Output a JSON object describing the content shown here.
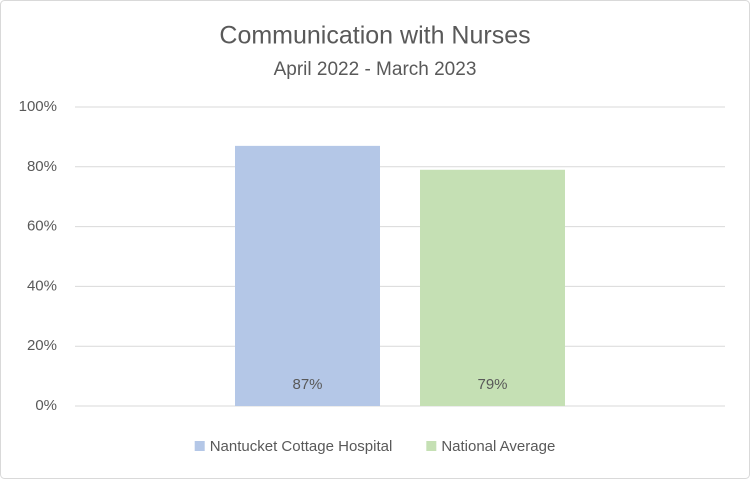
{
  "chart_data": {
    "type": "bar",
    "title": "Communication with Nurses",
    "subtitle": "April 2022 - March 2023",
    "categories": [
      null
    ],
    "series": [
      {
        "name": "Nantucket Cottage Hospital",
        "color": "#b4c7e7",
        "values": [
          87
        ],
        "value_labels": [
          "87%"
        ]
      },
      {
        "name": "National Average",
        "color": "#c5e0b4",
        "values": [
          79
        ],
        "value_labels": [
          "79%"
        ]
      }
    ],
    "ylim": [
      0,
      100
    ],
    "yticks": [
      {
        "value": 0,
        "label": "0%"
      },
      {
        "value": 20,
        "label": "20%"
      },
      {
        "value": 40,
        "label": "40%"
      },
      {
        "value": 60,
        "label": "60%"
      },
      {
        "value": 80,
        "label": "80%"
      },
      {
        "value": 100,
        "label": "100%"
      }
    ],
    "grid": true,
    "legend": "bottom"
  }
}
